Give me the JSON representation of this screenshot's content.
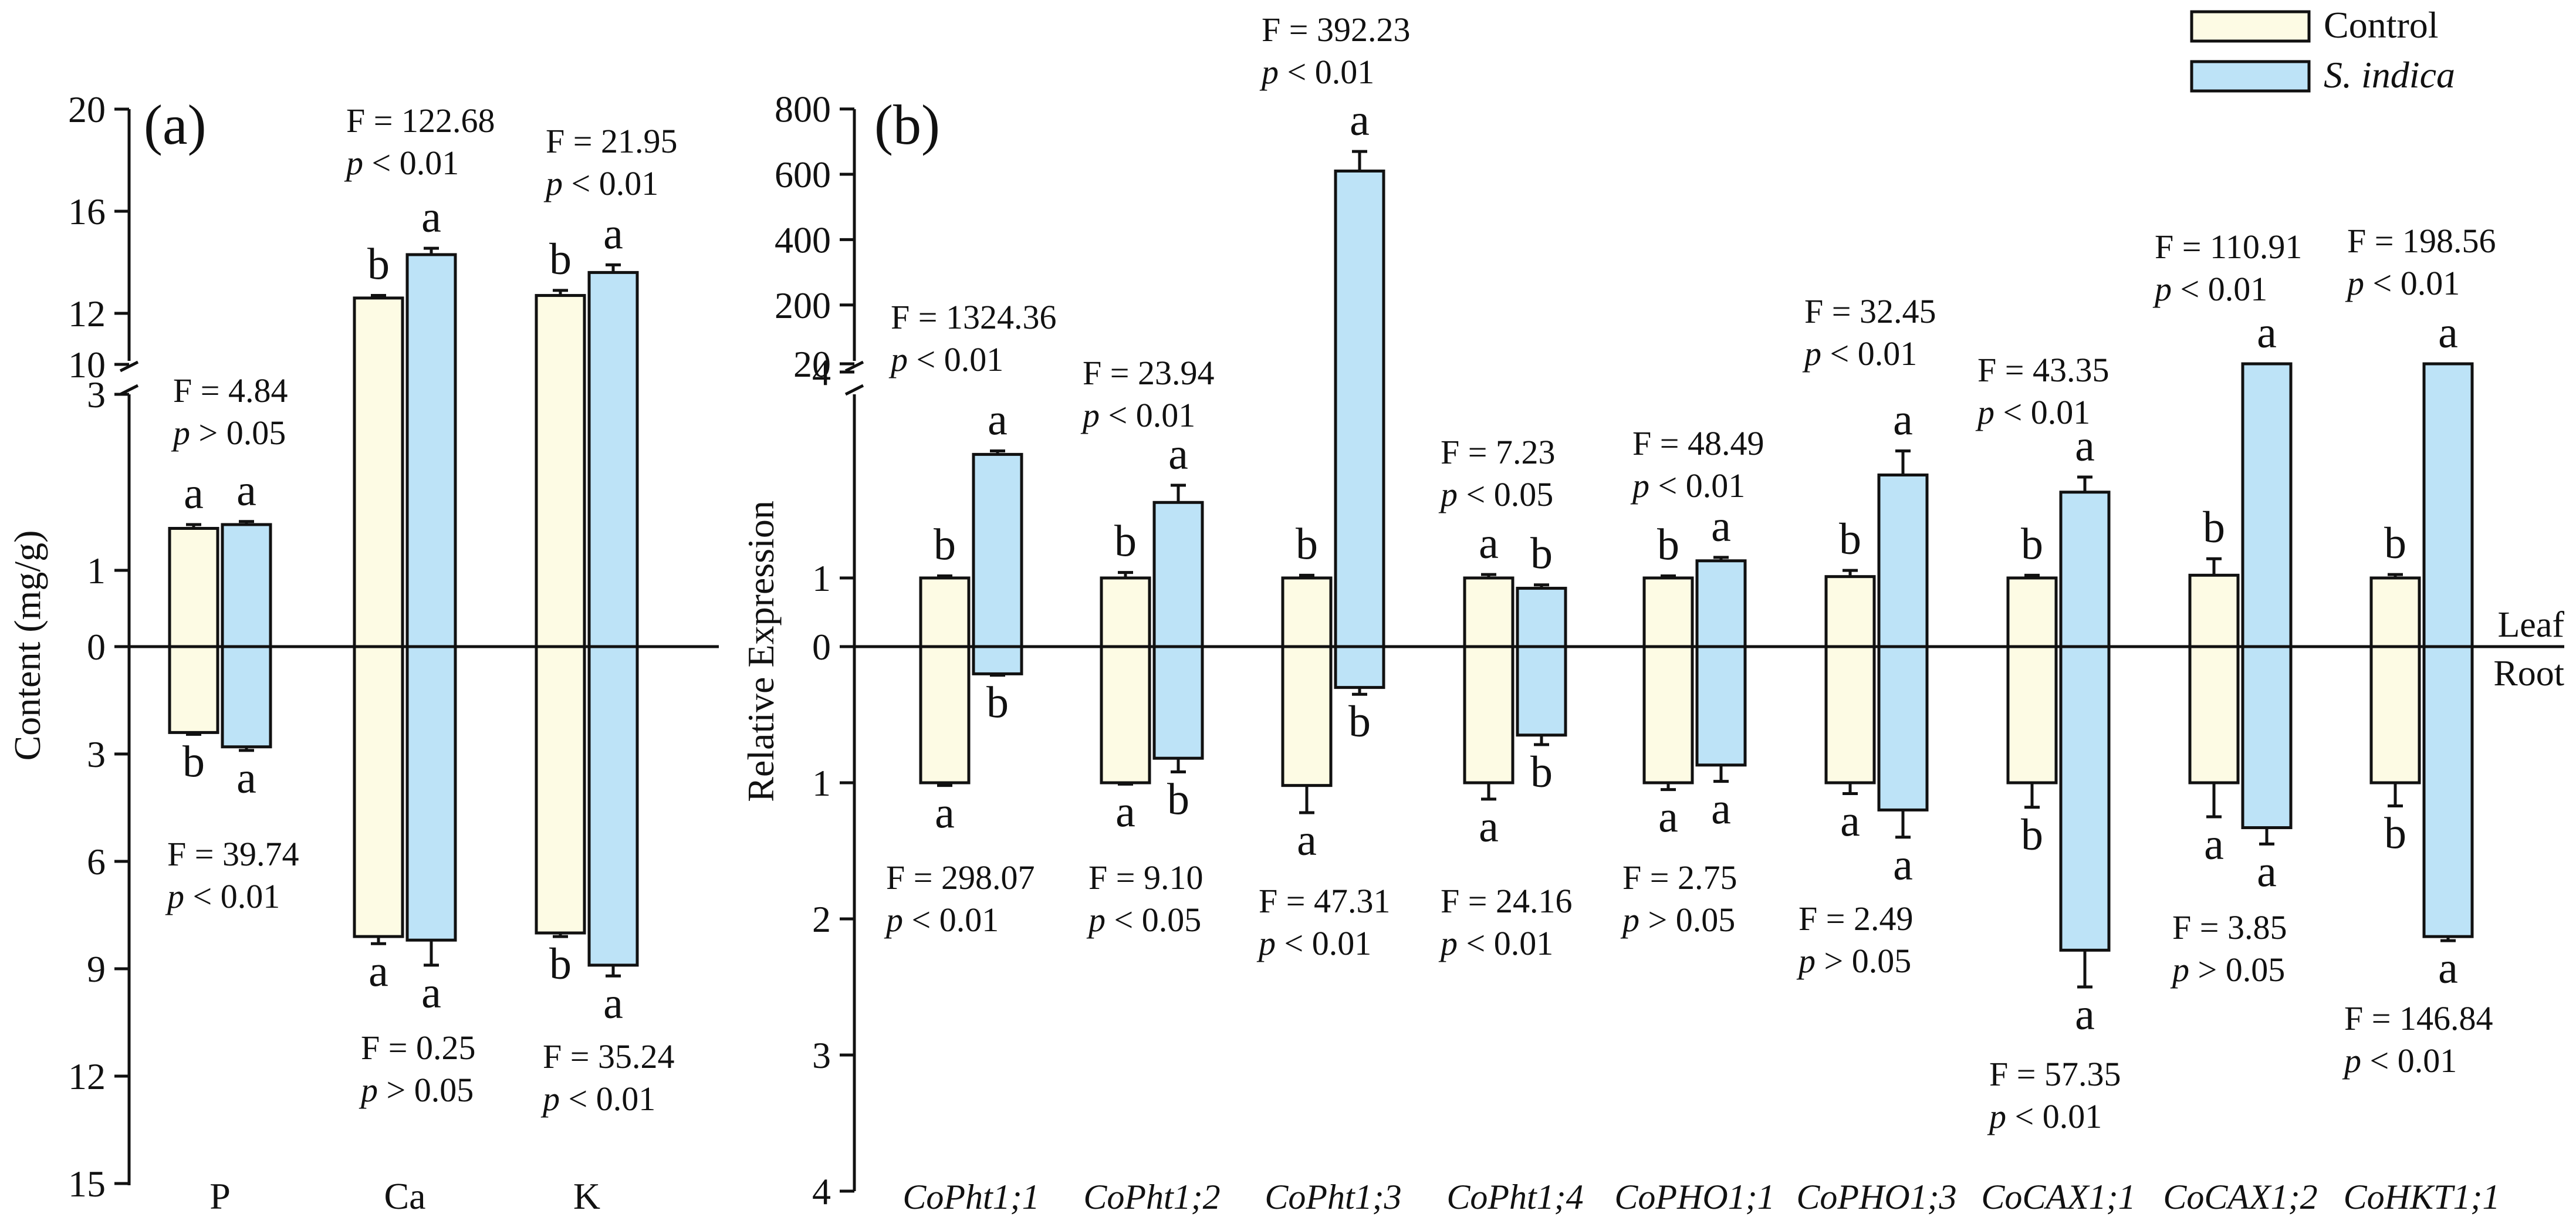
{
  "legend": [
    {
      "label": "Control",
      "color": "#fdfbe4",
      "italic": false
    },
    {
      "label": "S. indica",
      "color": "#bde3f7",
      "italic": true
    }
  ],
  "chart_data": [
    {
      "type": "bar",
      "panel": "(a)",
      "ylabel": "Content (mg/g)",
      "yticks_top": [
        "20",
        "16",
        "12",
        "10",
        "3",
        "1",
        "0"
      ],
      "yticks_bottom": [
        "3",
        "6",
        "9",
        "12",
        "15"
      ],
      "categories": [
        "P",
        "Ca",
        "K"
      ],
      "series_leaf": [
        {
          "name": "Control",
          "values": [
            1.55,
            12.6,
            12.7
          ],
          "errors": [
            0.05,
            0.1,
            0.2
          ]
        },
        {
          "name": "S. indica",
          "values": [
            1.6,
            14.3,
            13.6
          ],
          "errors": [
            0.04,
            0.25,
            0.3
          ]
        }
      ],
      "series_root": [
        {
          "name": "Control",
          "values": [
            2.4,
            8.1,
            8.0
          ],
          "errors": [
            0.05,
            0.2,
            0.1
          ]
        },
        {
          "name": "S. indica",
          "values": [
            2.8,
            8.2,
            8.9
          ],
          "errors": [
            0.1,
            0.7,
            0.3
          ]
        }
      ],
      "letters_leaf": [
        [
          "a",
          "a"
        ],
        [
          "b",
          "a"
        ],
        [
          "b",
          "a"
        ]
      ],
      "letters_root": [
        [
          "b",
          "a"
        ],
        [
          "a",
          "a"
        ],
        [
          "b",
          "a"
        ]
      ],
      "stats_leaf": [
        {
          "f": "F = 4.84",
          "p": "> 0.05"
        },
        {
          "f": "F = 122.68",
          "p": "< 0.01"
        },
        {
          "f": "F = 21.95",
          "p": "< 0.01"
        }
      ],
      "stats_root": [
        {
          "f": "F = 39.74",
          "p": "< 0.01"
        },
        {
          "f": "F = 0.25",
          "p": "> 0.05"
        },
        {
          "f": "F = 35.24",
          "p": "< 0.01"
        }
      ]
    },
    {
      "type": "bar",
      "panel": "(b)",
      "ylabel": "Relative Expression",
      "yticks_top": [
        "800",
        "600",
        "400",
        "200",
        "20",
        "4",
        "1",
        "0"
      ],
      "yticks_bottom": [
        "1",
        "2",
        "3",
        "4"
      ],
      "side_labels": [
        "Leaf",
        "Root"
      ],
      "categories": [
        "CoPht1;1",
        "CoPht1;2",
        "CoPht1;3",
        "CoPht1;4",
        "CoPHO1;1",
        "CoPHO1;3",
        "CoCAX1;1",
        "CoCAX1;2",
        "CoHKT1;1"
      ],
      "series_leaf": [
        {
          "name": "Control",
          "values": [
            1.0,
            1.0,
            1.0,
            1.0,
            1.0,
            1.02,
            1.0,
            1.04,
            1.0
          ],
          "errors": [
            0.03,
            0.08,
            0.04,
            0.05,
            0.03,
            0.09,
            0.04,
            0.24,
            0.05
          ]
        },
        {
          "name": "S. indica",
          "values": [
            2.8,
            2.1,
            610,
            0.85,
            1.25,
            2.5,
            2.25,
            20,
            20
          ],
          "errors": [
            0.05,
            0.25,
            60,
            0.05,
            0.05,
            0.35,
            0.22,
            0,
            0
          ]
        }
      ],
      "series_root": [
        {
          "name": "Control",
          "values": [
            1.0,
            1.0,
            1.02,
            1.0,
            1.0,
            1.0,
            1.0,
            1.0,
            1.0
          ],
          "errors": [
            0.02,
            0.01,
            0.2,
            0.12,
            0.05,
            0.08,
            0.18,
            0.25,
            0.17
          ]
        },
        {
          "name": "S. indica",
          "values": [
            0.2,
            0.82,
            0.3,
            0.65,
            0.87,
            1.2,
            2.23,
            1.33,
            2.13
          ],
          "errors": [
            0.01,
            0.1,
            0.05,
            0.07,
            0.12,
            0.2,
            0.27,
            0.12,
            0.03
          ]
        }
      ],
      "letters_leaf": [
        [
          "b",
          "a"
        ],
        [
          "b",
          "a"
        ],
        [
          "b",
          "a"
        ],
        [
          "a",
          "b"
        ],
        [
          "b",
          "a"
        ],
        [
          "b",
          "a"
        ],
        [
          "b",
          "a"
        ],
        [
          "b",
          "a"
        ],
        [
          "b",
          "a"
        ]
      ],
      "letters_root": [
        [
          "a",
          "b"
        ],
        [
          "a",
          "b"
        ],
        [
          "a",
          "b"
        ],
        [
          "a",
          "b"
        ],
        [
          "a",
          "a"
        ],
        [
          "a",
          "a"
        ],
        [
          "b",
          "a"
        ],
        [
          "a",
          "a"
        ],
        [
          "b",
          "a"
        ]
      ],
      "stats_leaf": [
        {
          "f": "F = 1324.36",
          "p": "< 0.01"
        },
        {
          "f": "F = 23.94",
          "p": "< 0.01"
        },
        {
          "f": "F = 392.23",
          "p": "< 0.01"
        },
        {
          "f": "F = 7.23",
          "p": "< 0.05"
        },
        {
          "f": "F = 48.49",
          "p": "< 0.01"
        },
        {
          "f": "F = 32.45",
          "p": "< 0.01"
        },
        {
          "f": "F = 43.35",
          "p": "< 0.01"
        },
        {
          "f": "F = 110.91",
          "p": "< 0.01"
        },
        {
          "f": "F = 198.56",
          "p": "< 0.01"
        }
      ],
      "stats_root": [
        {
          "f": "F = 298.07",
          "p": "< 0.01"
        },
        {
          "f": "F = 9.10",
          "p": "< 0.05"
        },
        {
          "f": "F = 47.31",
          "p": "< 0.01"
        },
        {
          "f": "F = 24.16",
          "p": "< 0.01"
        },
        {
          "f": "F = 2.75",
          "p": "> 0.05"
        },
        {
          "f": "F = 2.49",
          "p": "> 0.05"
        },
        {
          "f": "F = 57.35",
          "p": "< 0.01"
        },
        {
          "f": "F = 3.85",
          "p": "> 0.05"
        },
        {
          "f": "F = 146.84",
          "p": "< 0.01"
        }
      ]
    }
  ]
}
